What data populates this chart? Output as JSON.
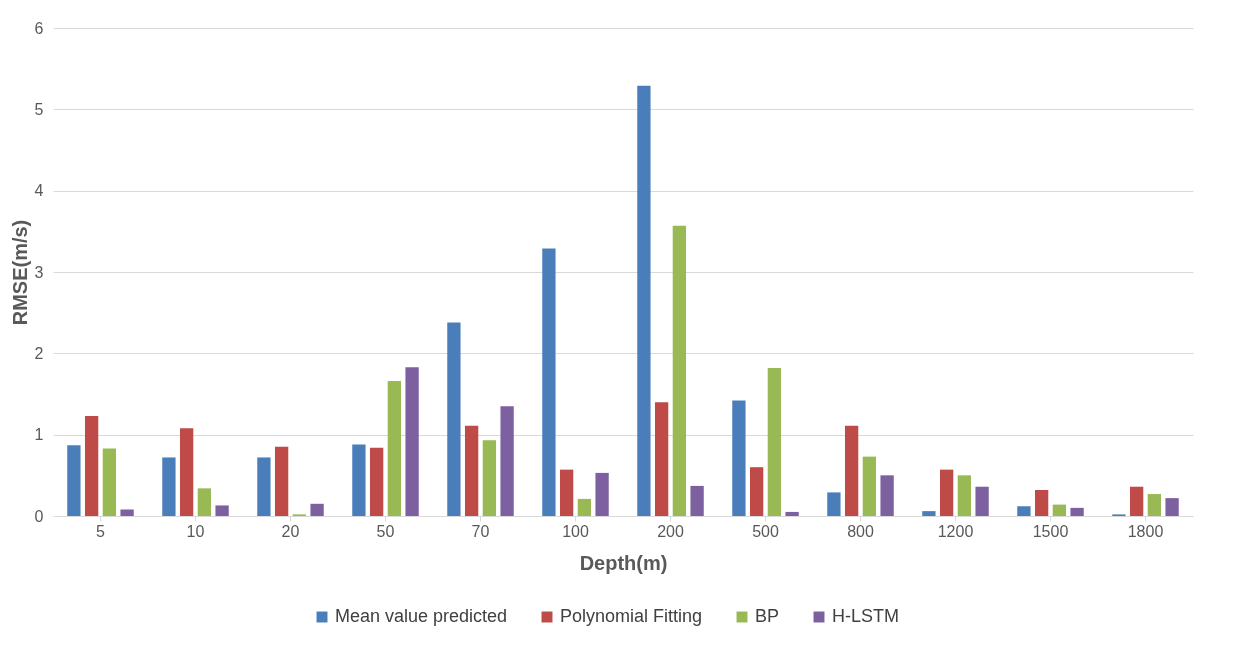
{
  "chart_data": {
    "type": "bar",
    "xlabel": "Depth(m)",
    "ylabel": "RMSE(m/s)",
    "categories": [
      "5",
      "10",
      "20",
      "50",
      "70",
      "100",
      "200",
      "500",
      "800",
      "1200",
      "1500",
      "1800"
    ],
    "series": [
      {
        "name": "Mean value predicted",
        "color": "#4a7ebb",
        "values": [
          0.87,
          0.72,
          0.72,
          0.88,
          2.38,
          3.29,
          5.29,
          1.42,
          0.29,
          0.06,
          0.12,
          0.02
        ]
      },
      {
        "name": "Polynomial Fitting",
        "color": "#be4b48",
        "values": [
          1.23,
          1.08,
          0.85,
          0.84,
          1.11,
          0.57,
          1.4,
          0.6,
          1.11,
          0.57,
          0.32,
          0.36
        ]
      },
      {
        "name": "BP",
        "color": "#98b954",
        "values": [
          0.83,
          0.34,
          0.02,
          1.66,
          0.93,
          0.21,
          3.57,
          1.82,
          0.73,
          0.5,
          0.14,
          0.27
        ]
      },
      {
        "name": "H-LSTM",
        "color": "#7d60a0",
        "values": [
          0.08,
          0.13,
          0.15,
          1.83,
          1.35,
          0.53,
          0.37,
          0.05,
          0.5,
          0.36,
          0.1,
          0.22
        ]
      }
    ],
    "ylim": [
      0,
      6
    ],
    "yticks": [
      0,
      1,
      2,
      3,
      4,
      5,
      6
    ],
    "grid": "y",
    "legend": "bottom"
  }
}
